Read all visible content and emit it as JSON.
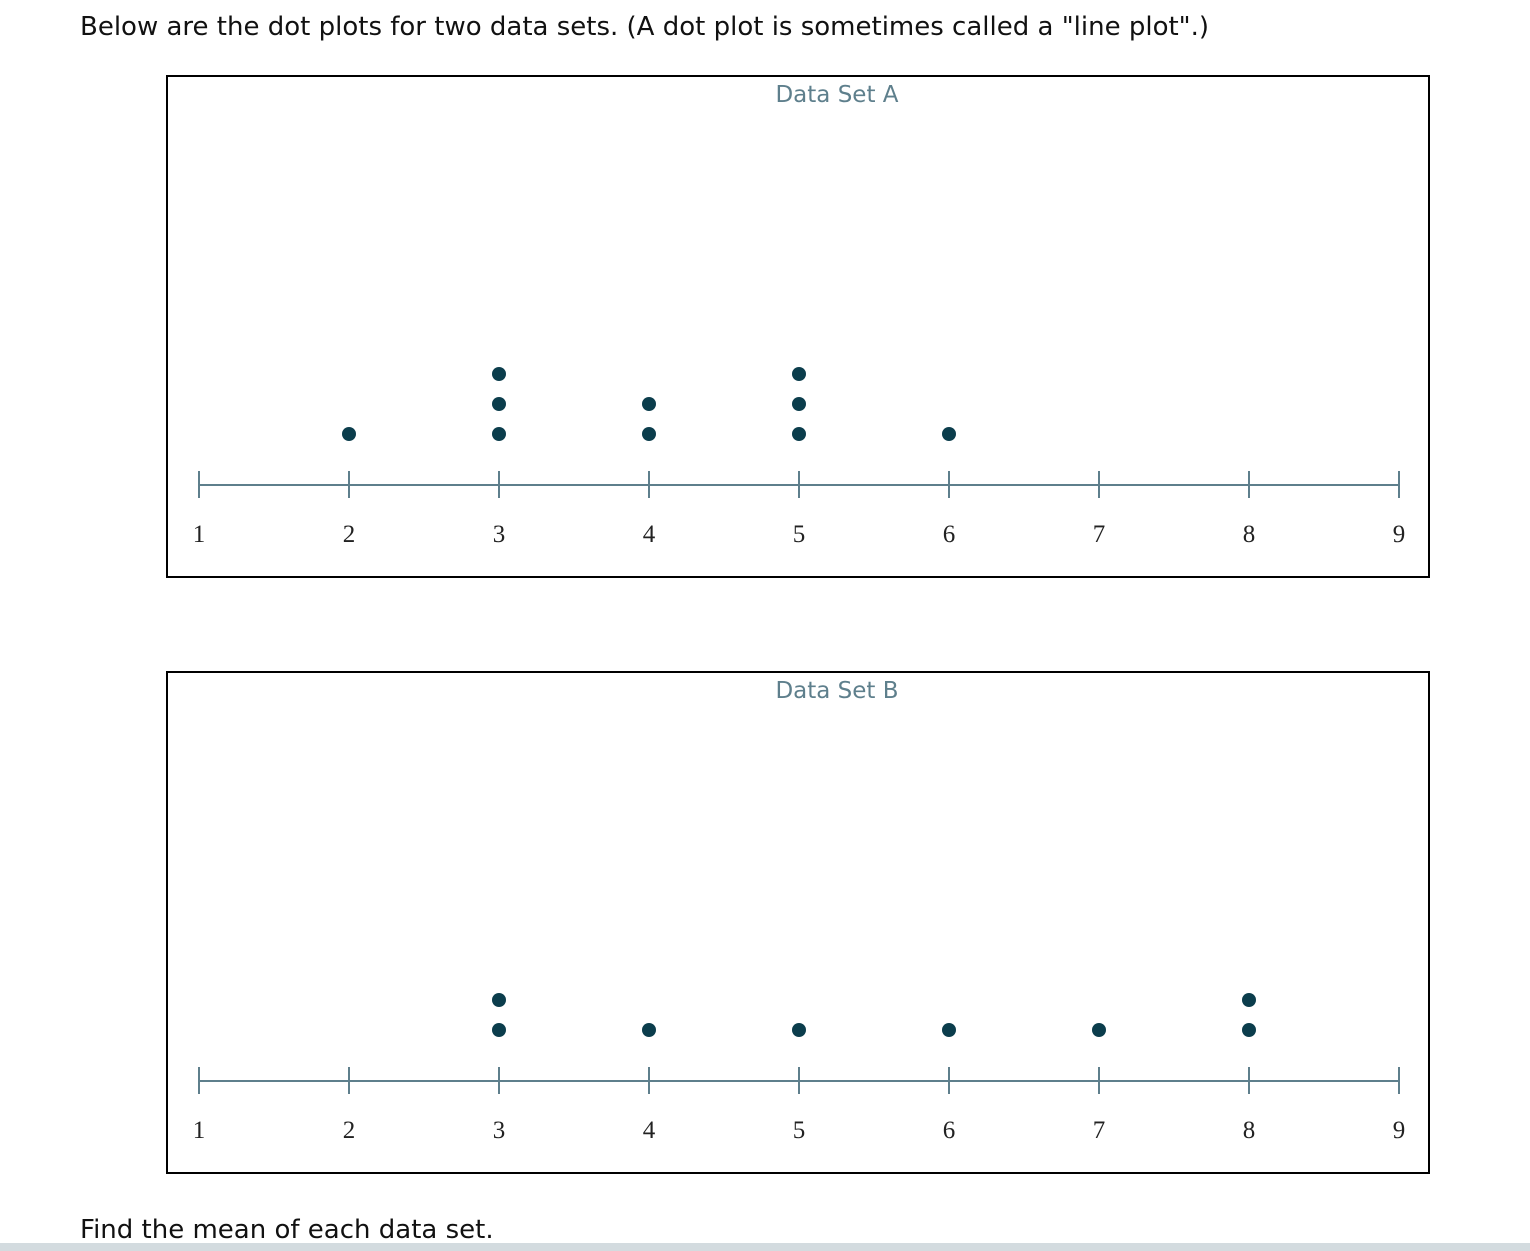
{
  "intro": "Below are the dot plots for two data sets. (A dot plot is sometimes called a \"line plot\".)",
  "question": "Find the mean of each data set.",
  "chart_data": [
    {
      "type": "dot",
      "title": "Data Set A",
      "values": [
        2,
        3,
        3,
        3,
        4,
        4,
        5,
        5,
        5,
        6
      ],
      "color": "#0b3d4c",
      "xlim": [
        1,
        9
      ],
      "xticks": [
        1,
        2,
        3,
        4,
        5,
        6,
        7,
        8,
        9
      ]
    },
    {
      "type": "dot",
      "title": "Data Set B",
      "values": [
        3,
        3,
        4,
        5,
        6,
        7,
        8,
        8
      ],
      "color": "#0b3d4c",
      "xlim": [
        1,
        9
      ],
      "xticks": [
        1,
        2,
        3,
        4,
        5,
        6,
        7,
        8,
        9
      ]
    }
  ]
}
